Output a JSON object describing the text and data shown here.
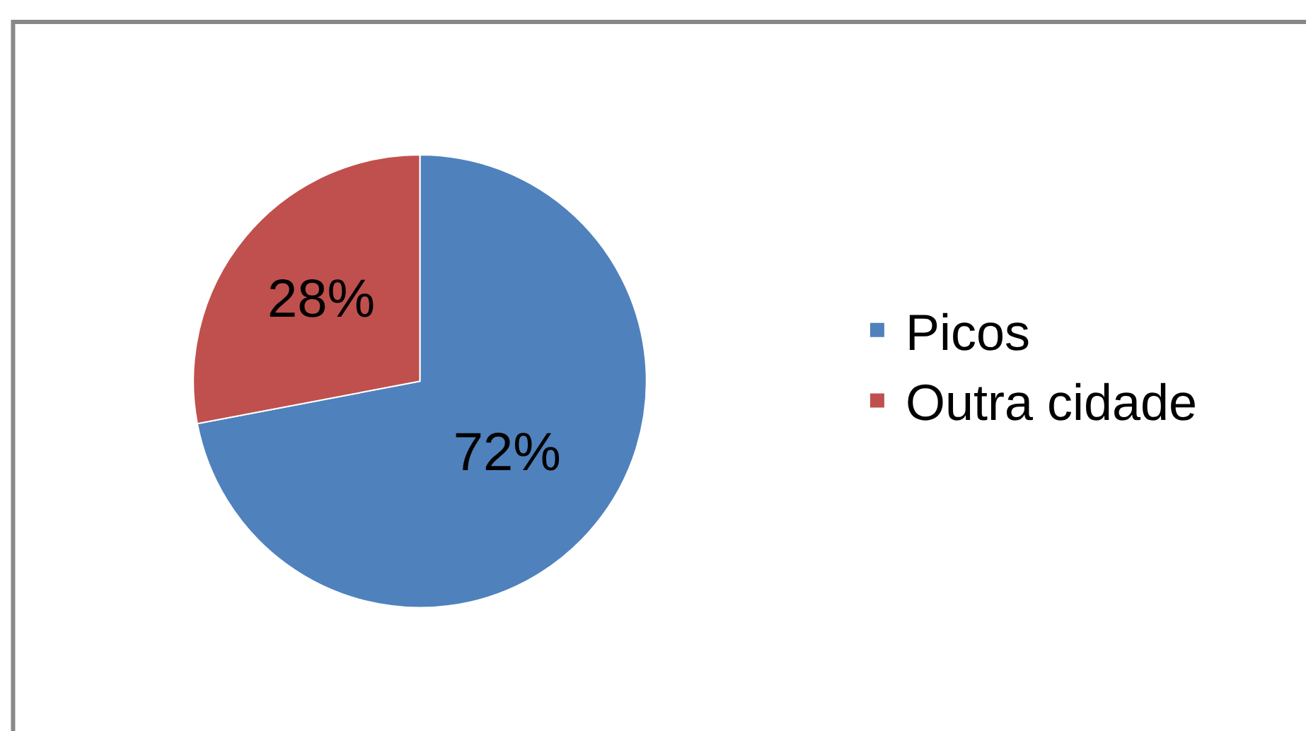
{
  "chart_data": {
    "type": "pie",
    "categories": [
      "Picos",
      "Outra cidade"
    ],
    "values": [
      72,
      28
    ],
    "colors": [
      "#4f81bd",
      "#c0504d"
    ],
    "value_labels": [
      "72%",
      "28%"
    ],
    "legend": "right"
  }
}
